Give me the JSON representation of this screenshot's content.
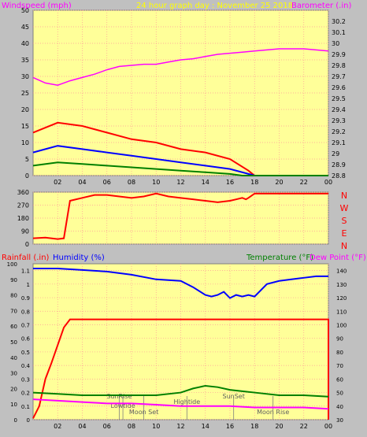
{
  "chart_data": [
    {
      "type": "line",
      "title": "24 hour graph day : November 25 2018",
      "ylabel": "Windspeed (mph)",
      "y2label": "Barometer (.in)",
      "x_ticks": [
        "02",
        "04",
        "06",
        "08",
        "10",
        "12",
        "14",
        "16",
        "18",
        "20",
        "22",
        "00"
      ],
      "xlim": [
        0,
        24
      ],
      "ylim": [
        0,
        50
      ],
      "y_ticks": [
        0,
        5,
        10,
        15,
        20,
        25,
        30,
        35,
        40,
        45,
        50
      ],
      "y2lim": [
        28.8,
        30.3
      ],
      "y2_ticks": [
        "28.8",
        "28.9",
        "29",
        "29.1",
        "29.2",
        "29.3",
        "29.4",
        "29.5",
        "29.6",
        "29.7",
        "29.8",
        "29.9",
        "30",
        "30.1",
        "30.2"
      ],
      "grid": true,
      "colors": {
        "gust": "#ff0000",
        "avg": "#0000ff",
        "low": "#008000",
        "barometer": "#ff00ff"
      },
      "series": [
        {
          "key": "gust",
          "x": [
            0,
            2,
            4,
            6,
            8,
            10,
            12,
            14,
            16,
            17.5,
            18,
            24
          ],
          "y": [
            13,
            16,
            15,
            13,
            11,
            10,
            8,
            7,
            5,
            1.5,
            0,
            0
          ]
        },
        {
          "key": "avg",
          "x": [
            0,
            2,
            4,
            6,
            8,
            10,
            12,
            14,
            16,
            17.5,
            18,
            24
          ],
          "y": [
            7,
            9,
            8,
            7,
            6,
            5,
            4,
            3,
            2,
            0.5,
            0,
            0
          ]
        },
        {
          "key": "low",
          "x": [
            0,
            2,
            4,
            6,
            8,
            10,
            12,
            14,
            16,
            17,
            18,
            24
          ],
          "y": [
            3,
            4,
            3.5,
            3,
            2.5,
            2,
            1.5,
            1,
            0.5,
            0,
            0,
            0
          ]
        },
        {
          "key": "barometer",
          "x": [
            0,
            1,
            2,
            3,
            4,
            5,
            6,
            7,
            8,
            9,
            10,
            11,
            12,
            13,
            14,
            15,
            16,
            17,
            18,
            19,
            20,
            21,
            22,
            23,
            24
          ],
          "y": [
            29.69,
            29.64,
            29.62,
            29.66,
            29.69,
            29.72,
            29.76,
            29.79,
            29.8,
            29.81,
            29.81,
            29.83,
            29.85,
            29.86,
            29.88,
            29.9,
            29.91,
            29.92,
            29.93,
            29.94,
            29.95,
            29.95,
            29.95,
            29.94,
            29.93
          ]
        }
      ]
    },
    {
      "type": "scatter",
      "ylim": [
        0,
        360
      ],
      "y_ticks": [
        0,
        90,
        180,
        270,
        360
      ],
      "right_labels": [
        "N",
        "W",
        "S",
        "E",
        "N"
      ],
      "xlim": [
        0,
        24
      ],
      "color": "#ff0000",
      "series": [
        {
          "key": "direction",
          "x": [
            0,
            1,
            2,
            2.5,
            3,
            4,
            5,
            6,
            7,
            8,
            9,
            10,
            11,
            12,
            13,
            14,
            15,
            16,
            16.5,
            17,
            17.3,
            17.5,
            18,
            24
          ],
          "y": [
            40,
            45,
            35,
            40,
            300,
            320,
            340,
            340,
            330,
            320,
            330,
            350,
            330,
            320,
            310,
            300,
            290,
            300,
            310,
            320,
            310,
            320,
            350,
            350
          ]
        }
      ]
    },
    {
      "type": "line",
      "ylabel_left_1": "Rainfall (.in)",
      "ylabel_left_2": "Humidity (%)",
      "ylabel_right_1": "Temperature (°F)",
      "ylabel_right_2": "Dew Point (°F)",
      "xlim": [
        0,
        24
      ],
      "humidity_lim": [
        0,
        100
      ],
      "humidity_ticks": [
        0,
        10,
        20,
        30,
        40,
        50,
        60,
        70,
        80,
        90,
        100
      ],
      "rain_lim": [
        0,
        1.15
      ],
      "rain_ticks": [
        "0",
        "0.1",
        "0.2",
        "0.3",
        "0.4",
        "0.5",
        "0.6",
        "0.7",
        "0.8",
        "0.9",
        "1",
        "1.1"
      ],
      "temp_lim": [
        30,
        145
      ],
      "temp_ticks": [
        30,
        40,
        50,
        60,
        70,
        80,
        90,
        100,
        110,
        120,
        130,
        140
      ],
      "x_ticks": [
        "02",
        "04",
        "06",
        "08",
        "10",
        "12",
        "14",
        "16",
        "18",
        "20",
        "22",
        "00"
      ],
      "colors": {
        "rain": "#ff0000",
        "humidity": "#0000ff",
        "temperature": "#008000",
        "dewpoint": "#ff00ff"
      },
      "series": [
        {
          "key": "humidity",
          "x": [
            0,
            2,
            4,
            6,
            8,
            10,
            12,
            13,
            14,
            14.5,
            15,
            15.5,
            16,
            16.5,
            17,
            17.5,
            18,
            19,
            20,
            21,
            22,
            23,
            24
          ],
          "y": [
            97,
            97,
            96,
            95,
            93,
            90,
            89,
            85,
            80,
            79,
            80,
            82,
            78,
            80,
            79,
            80,
            79,
            87,
            89,
            90,
            91,
            92,
            92
          ]
        },
        {
          "key": "rain",
          "x": [
            0,
            0.5,
            1,
            1.5,
            2,
            2.5,
            3,
            4,
            6,
            24,
            24
          ],
          "y": [
            0.01,
            0.1,
            0.3,
            0.42,
            0.55,
            0.68,
            0.74,
            0.74,
            0.74,
            0.74,
            0.0
          ]
        },
        {
          "key": "temperature",
          "x": [
            0,
            2,
            4,
            6,
            8,
            10,
            12,
            13,
            14,
            15,
            16,
            17,
            18,
            20,
            22,
            24
          ],
          "y": [
            50,
            49,
            48,
            48,
            48,
            48,
            50,
            53,
            55,
            54,
            52,
            51,
            50,
            48,
            48,
            47
          ]
        },
        {
          "key": "dewpoint",
          "x": [
            0,
            2,
            4,
            6,
            8,
            10,
            12,
            14,
            16,
            18,
            20,
            22,
            24
          ],
          "y": [
            45,
            44,
            43,
            42,
            42,
            41,
            40,
            40,
            40,
            39,
            39,
            39,
            38
          ]
        }
      ],
      "annotations": [
        {
          "label": "SunRise",
          "x": 7.0
        },
        {
          "label": "Lowtide",
          "x": 7.3
        },
        {
          "label": "Moon Set",
          "x": 9.0
        },
        {
          "label": "Hightide",
          "x": 12.5
        },
        {
          "label": "SunSet",
          "x": 16.3
        },
        {
          "label": "Moon Rise",
          "x": 19.5
        }
      ]
    }
  ]
}
